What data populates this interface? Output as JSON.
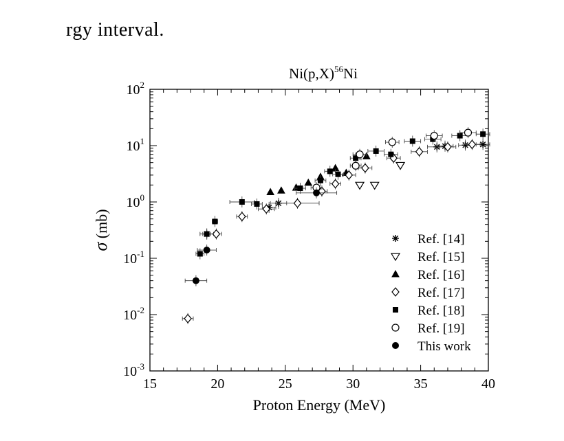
{
  "page": {
    "top_text": "rgy interval."
  },
  "chart_data": {
    "type": "scatter",
    "title": "Ni(p,X)⁵⁶Ni",
    "title_parts": {
      "pre": "Ni(p,X)",
      "sup": "56",
      "post": "Ni"
    },
    "xlabel": "Proton Energy (MeV)",
    "ylabel": "σ (mb)",
    "ylabel_parts": {
      "symbol": "σ",
      "rest": " (mb)"
    },
    "xlim": [
      15,
      40
    ],
    "ylim": [
      0.001,
      100
    ],
    "yscale": "log",
    "grid": false,
    "legend_position": "bottom-right",
    "xticks": [
      15,
      20,
      25,
      30,
      35,
      40
    ],
    "yticks": [
      {
        "value": 0.001,
        "base": "10",
        "exp": "-3"
      },
      {
        "value": 0.01,
        "base": "10",
        "exp": "-2"
      },
      {
        "value": 0.1,
        "base": "10",
        "exp": "-1"
      },
      {
        "value": 1,
        "base": "10",
        "exp": "0"
      },
      {
        "value": 10,
        "base": "10",
        "exp": "1"
      },
      {
        "value": 100,
        "base": "10",
        "exp": "2"
      }
    ],
    "series": [
      {
        "name": "Ref. [14]",
        "marker": "asterisk",
        "points": [
          {
            "x": 19.2,
            "y": 0.27,
            "xerr": 0.5
          },
          {
            "x": 24.5,
            "y": 0.95,
            "xerr": 0.6
          },
          {
            "x": 23.8,
            "y": 0.8,
            "xerr": 0.5
          },
          {
            "x": 36.2,
            "y": 9.5,
            "xerr": 0.7
          },
          {
            "x": 36.8,
            "y": 9.8,
            "xerr": 0.6
          },
          {
            "x": 38.3,
            "y": 10.2,
            "xerr": 0.5
          },
          {
            "x": 39.6,
            "y": 10.5,
            "xerr": 0.5
          }
        ]
      },
      {
        "name": "Ref. [15]",
        "marker": "triangle-down",
        "points": [
          {
            "x": 30.5,
            "y": 2.0
          },
          {
            "x": 31.6,
            "y": 2.0
          },
          {
            "x": 33.5,
            "y": 4.5
          }
        ]
      },
      {
        "name": "Ref. [16]",
        "marker": "triangle-up",
        "points": [
          {
            "x": 23.9,
            "y": 1.5
          },
          {
            "x": 24.7,
            "y": 1.6
          },
          {
            "x": 25.8,
            "y": 1.8
          },
          {
            "x": 26.7,
            "y": 2.2
          },
          {
            "x": 27.6,
            "y": 2.8
          },
          {
            "x": 28.7,
            "y": 4.0
          },
          {
            "x": 29.5,
            "y": 3.3
          },
          {
            "x": 31.0,
            "y": 6.5
          }
        ]
      },
      {
        "name": "Ref. [17]",
        "marker": "diamond",
        "points": [
          {
            "x": 17.8,
            "y": 0.0085,
            "xerr": 0.4
          },
          {
            "x": 19.9,
            "y": 0.27,
            "xerr": 0.4
          },
          {
            "x": 21.8,
            "y": 0.55,
            "xerr": 0.4
          },
          {
            "x": 23.6,
            "y": 0.75,
            "xerr": 0.6
          },
          {
            "x": 25.9,
            "y": 0.95,
            "xerr": 1.6
          },
          {
            "x": 27.7,
            "y": 1.55,
            "xerr": 0.4
          },
          {
            "x": 28.7,
            "y": 2.1,
            "xerr": 0.4
          },
          {
            "x": 29.7,
            "y": 3.0,
            "xerr": 0.5
          },
          {
            "x": 30.9,
            "y": 4.0,
            "xerr": 0.5
          },
          {
            "x": 33.0,
            "y": 6.0,
            "xerr": 0.5
          },
          {
            "x": 34.9,
            "y": 7.8,
            "xerr": 0.6
          },
          {
            "x": 37.0,
            "y": 9.5,
            "xerr": 0.6
          },
          {
            "x": 38.8,
            "y": 10.5,
            "xerr": 0.6
          }
        ]
      },
      {
        "name": "Ref. [18]",
        "marker": "square",
        "points": [
          {
            "x": 18.7,
            "y": 0.12,
            "xerr": 0.3
          },
          {
            "x": 19.2,
            "y": 0.27,
            "xerr": 0.3
          },
          {
            "x": 19.8,
            "y": 0.45,
            "xerr": 0.2
          },
          {
            "x": 21.8,
            "y": 1.0,
            "xerr": 0.9
          },
          {
            "x": 22.9,
            "y": 0.92,
            "xerr": 0.4
          },
          {
            "x": 26.1,
            "y": 1.75,
            "xerr": 0.4
          },
          {
            "x": 27.6,
            "y": 2.4,
            "xerr": 0.4
          },
          {
            "x": 28.3,
            "y": 3.5,
            "xerr": 0.4
          },
          {
            "x": 28.9,
            "y": 3.1,
            "xerr": 0.4
          },
          {
            "x": 30.2,
            "y": 6.0,
            "xerr": 0.4
          },
          {
            "x": 31.7,
            "y": 8.0,
            "xerr": 0.6
          },
          {
            "x": 32.8,
            "y": 7.0,
            "xerr": 0.5
          },
          {
            "x": 34.4,
            "y": 12.0,
            "xerr": 0.6
          },
          {
            "x": 35.9,
            "y": 13.0,
            "xerr": 0.6
          },
          {
            "x": 37.9,
            "y": 15.0,
            "xerr": 0.6
          },
          {
            "x": 39.6,
            "y": 16.0,
            "xerr": 0.5
          }
        ]
      },
      {
        "name": "Ref. [19]",
        "marker": "circle-open",
        "points": [
          {
            "x": 27.3,
            "y": 1.8,
            "xerr": 0.4
          },
          {
            "x": 30.2,
            "y": 4.4,
            "xerr": 0.4
          },
          {
            "x": 30.5,
            "y": 7.0,
            "xerr": 0.5
          },
          {
            "x": 32.9,
            "y": 11.5,
            "xerr": 0.5
          },
          {
            "x": 36.0,
            "y": 15.0,
            "xerr": 0.6
          },
          {
            "x": 38.5,
            "y": 17.0,
            "xerr": 0.6
          }
        ]
      },
      {
        "name": "This work",
        "marker": "circle-filled",
        "points": [
          {
            "x": 18.4,
            "y": 0.04,
            "xerr": 0.8
          },
          {
            "x": 19.2,
            "y": 0.14,
            "xerr": 0.7
          },
          {
            "x": 27.3,
            "y": 1.45,
            "xerr": 1.5
          }
        ]
      }
    ]
  }
}
